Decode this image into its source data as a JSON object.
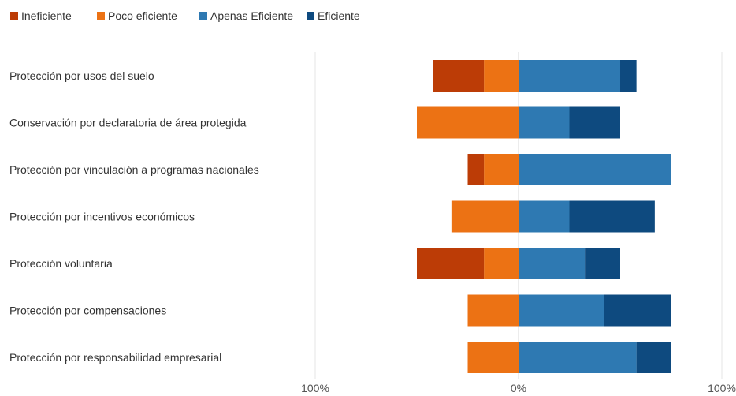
{
  "chart_data": {
    "type": "bar",
    "orientation": "horizontal",
    "stacked": "diverging",
    "title": "",
    "xlabel": "",
    "ylabel": "",
    "xlim": [
      -1,
      1
    ],
    "ticks": [
      "100%",
      "0%",
      "100%"
    ],
    "grid": false,
    "legend": {
      "position": "top-left",
      "items": [
        "Ineficiente",
        "Poco eficiente",
        "Apenas Eficiente",
        "Eficiente"
      ]
    },
    "categories": [
      "Protección por usos del suelo",
      "Conservación por declaratoria de área protegida",
      "Protección por vinculación a programas nacionales",
      "Protección por incentivos económicos",
      "Protección voluntaria",
      "Protección por compensaciones",
      "Protección por responsabilidad empresarial"
    ],
    "series": [
      {
        "name": "Ineficiente",
        "side": "negative",
        "color": "#BC3C06",
        "values": [
          0.25,
          0,
          0.08,
          0,
          0.33,
          0,
          0
        ]
      },
      {
        "name": "Poco eficiente",
        "side": "negative",
        "color": "#EC7214",
        "values": [
          0.17,
          0.5,
          0.17,
          0.33,
          0.17,
          0.25,
          0.25
        ]
      },
      {
        "name": "Apenas Eficiente",
        "side": "positive",
        "color": "#2E79B2",
        "values": [
          0.5,
          0.25,
          0.75,
          0.25,
          0.33,
          0.42,
          0.58
        ]
      },
      {
        "name": "Eficiente",
        "side": "positive",
        "color": "#0E4A7F",
        "values": [
          0.08,
          0.25,
          0,
          0.42,
          0.17,
          0.33,
          0.17
        ]
      }
    ]
  }
}
